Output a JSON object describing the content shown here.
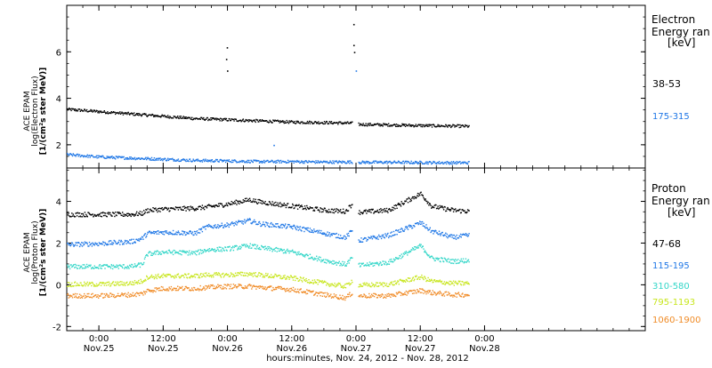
{
  "colors": {
    "black": "#000000",
    "blue": "#1f77e6",
    "cyan": "#33d6c8",
    "yellow": "#c8e61e",
    "orange": "#f08c28"
  },
  "xaxis": {
    "title": "hours:minutes, Nov. 24, 2012 - Nov. 28, 2012",
    "range_hours": [
      -6,
      102
    ],
    "ticks": [
      {
        "h": 0,
        "time": "0:00",
        "date": "Nov.25"
      },
      {
        "h": 12,
        "time": "12:00",
        "date": "Nov.25"
      },
      {
        "h": 24,
        "time": "0:00",
        "date": "Nov.26"
      },
      {
        "h": 36,
        "time": "12:00",
        "date": "Nov.26"
      },
      {
        "h": 48,
        "time": "0:00",
        "date": "Nov.27"
      },
      {
        "h": 60,
        "time": "12:00",
        "date": "Nov.27"
      },
      {
        "h": 72,
        "time": "0:00",
        "date": "Nov.28"
      }
    ]
  },
  "chart_data": [
    {
      "type": "scatter",
      "ylabel_line1": "ACE EPAM",
      "ylabel_line2": "log(Electron Flux)",
      "ylabel_line3": "[1/(cm²s ster MeV)]",
      "ylim": [
        1.0,
        8.0
      ],
      "yticks": [
        "2",
        "4",
        "6"
      ],
      "yticks_values": [
        2,
        4,
        6
      ],
      "legend_title_line1": "Electron",
      "legend_title_line2": "Energy ran",
      "legend_unit": "[keV]",
      "x_hours": [
        -6,
        0,
        6,
        12,
        18,
        24,
        30,
        36,
        42,
        47.5,
        48.5,
        54,
        60,
        66,
        69
      ],
      "series": [
        {
          "name": "38-53",
          "color_key": "black",
          "values": [
            3.55,
            3.45,
            3.35,
            3.25,
            3.15,
            3.1,
            3.05,
            3.0,
            2.98,
            2.95,
            2.9,
            2.88,
            2.85,
            2.83,
            2.82
          ]
        },
        {
          "name": "175-315",
          "color_key": "blue",
          "values": [
            1.6,
            1.5,
            1.45,
            1.4,
            1.35,
            1.33,
            1.3,
            1.3,
            1.28,
            1.28,
            1.27,
            1.27,
            1.26,
            1.25,
            1.25
          ]
        }
      ],
      "spikes": [
        {
          "x": 23.8,
          "values": [
            6.2,
            5.7,
            5.2
          ],
          "color_key": "black"
        },
        {
          "x": 47.6,
          "values": [
            7.2,
            6.3,
            6.0
          ],
          "color_key": "black"
        },
        {
          "x": 47.8,
          "values": [
            5.2
          ],
          "color_key": "blue"
        },
        {
          "x": 32.5,
          "values": [
            2.0
          ],
          "color_key": "blue"
        }
      ]
    },
    {
      "type": "scatter",
      "ylabel_line1": "ACE EPAM",
      "ylabel_line2": "log(Proton Flux)",
      "ylabel_line3": "[1/(cm²s ster MeV)]",
      "ylim": [
        -2.2,
        5.6
      ],
      "yticks": [
        "-2",
        "0",
        "2",
        "4"
      ],
      "yticks_values": [
        -2,
        0,
        2,
        4
      ],
      "legend_title_line1": "Proton",
      "legend_title_line2": "Energy ran",
      "legend_unit": "[keV]",
      "x_hours": [
        -6,
        0,
        6,
        8,
        9,
        12,
        18,
        20,
        24,
        28,
        30,
        36,
        42,
        46,
        47.5,
        48.5,
        54,
        60,
        62,
        66,
        69
      ],
      "series": [
        {
          "name": "47-68",
          "color_key": "black",
          "values": [
            3.4,
            3.4,
            3.4,
            3.45,
            3.6,
            3.65,
            3.7,
            3.75,
            3.9,
            4.1,
            4.0,
            3.8,
            3.6,
            3.55,
            4.0,
            3.5,
            3.6,
            4.4,
            3.8,
            3.6,
            3.55
          ]
        },
        {
          "name": "115-195",
          "color_key": "blue",
          "values": [
            1.95,
            2.0,
            2.1,
            2.25,
            2.5,
            2.55,
            2.5,
            2.8,
            2.9,
            3.1,
            2.95,
            2.8,
            2.5,
            2.3,
            2.7,
            2.15,
            2.4,
            3.0,
            2.6,
            2.3,
            2.4
          ]
        },
        {
          "name": "310-580",
          "color_key": "cyan",
          "values": [
            0.9,
            0.9,
            0.9,
            1.0,
            1.5,
            1.6,
            1.55,
            1.7,
            1.75,
            1.9,
            1.8,
            1.6,
            1.2,
            1.0,
            1.4,
            0.95,
            1.1,
            1.9,
            1.3,
            1.15,
            1.2
          ]
        },
        {
          "name": "795-1193",
          "color_key": "yellow",
          "values": [
            0.05,
            0.05,
            0.1,
            0.2,
            0.4,
            0.45,
            0.45,
            0.5,
            0.5,
            0.55,
            0.5,
            0.35,
            0.1,
            -0.05,
            0.3,
            0.0,
            0.05,
            0.4,
            0.2,
            0.1,
            0.1
          ]
        },
        {
          "name": "1060-1900",
          "color_key": "orange",
          "values": [
            -0.5,
            -0.5,
            -0.45,
            -0.4,
            -0.25,
            -0.15,
            -0.15,
            -0.1,
            -0.05,
            -0.05,
            -0.1,
            -0.2,
            -0.45,
            -0.6,
            -0.3,
            -0.5,
            -0.5,
            -0.25,
            -0.35,
            -0.45,
            -0.45
          ]
        }
      ]
    }
  ]
}
